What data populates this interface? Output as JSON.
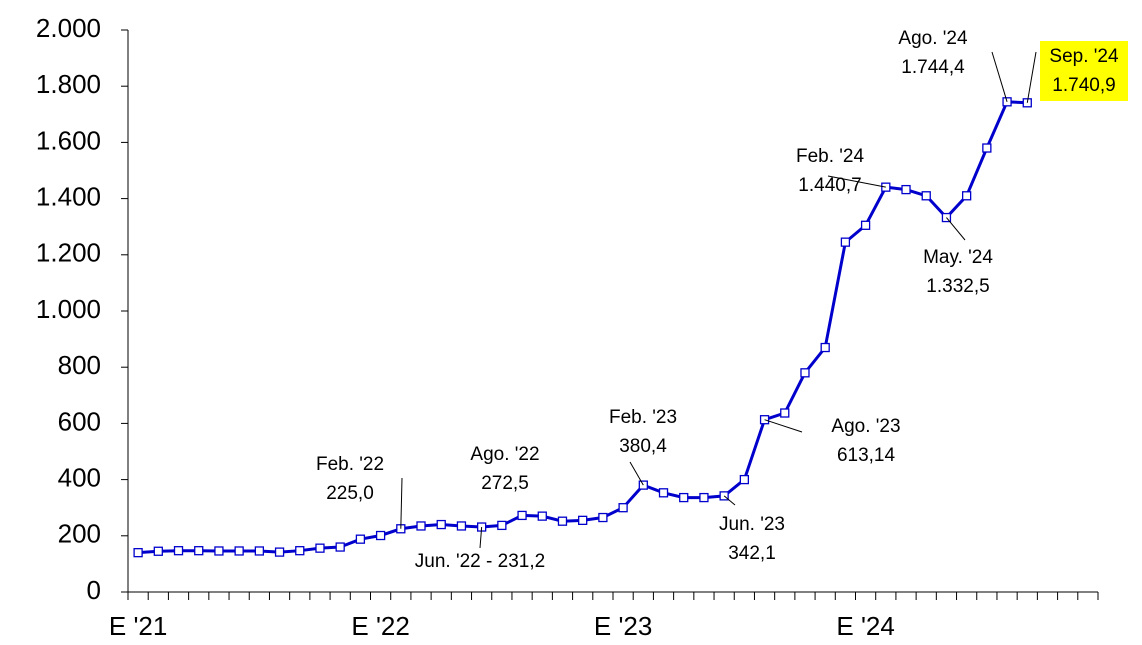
{
  "chart_data": {
    "type": "line",
    "categories": [
      "E '21",
      null,
      null,
      null,
      null,
      null,
      null,
      null,
      null,
      null,
      null,
      null,
      "E '22",
      null,
      null,
      null,
      null,
      null,
      null,
      null,
      null,
      null,
      null,
      null,
      "E '23",
      null,
      null,
      null,
      null,
      null,
      null,
      null,
      null,
      null,
      null,
      null,
      "E '24",
      null,
      null,
      null,
      null,
      null,
      null,
      null,
      null,
      null,
      null,
      null
    ],
    "series": [
      {
        "color": "#0000cc",
        "values": [
          140,
          145,
          147,
          147,
          146,
          146,
          146,
          142,
          147,
          156,
          160,
          188,
          201,
          225.0,
          235,
          240,
          235,
          231.2,
          237,
          272.5,
          270,
          252,
          255,
          265,
          300,
          380.4,
          353,
          336,
          336,
          342.1,
          400,
          613.14,
          637,
          780,
          870,
          1245,
          1305,
          1440.7,
          1432,
          1410,
          1332.5,
          1410,
          1580,
          1744.4,
          1740.9,
          null,
          null,
          null
        ]
      }
    ],
    "annotations": [
      {
        "lines": [
          "Feb. '22",
          "225,0"
        ]
      },
      {
        "lines": [
          "Jun. '22 - 231,2"
        ]
      },
      {
        "lines": [
          "Ago. '22",
          "272,5"
        ]
      },
      {
        "lines": [
          "Feb. '23",
          "380,4"
        ]
      },
      {
        "lines": [
          "Jun. '23",
          "342,1"
        ]
      },
      {
        "lines": [
          "Ago. '23",
          "613,14"
        ]
      },
      {
        "lines": [
          "Feb. '24",
          "1.440,7"
        ]
      },
      {
        "lines": [
          "May. '24",
          "1.332,5"
        ]
      },
      {
        "lines": [
          "Ago. '24",
          "1.744,4"
        ]
      },
      {
        "lines": [
          "Sep. '24",
          "1.740,9"
        ],
        "highlight": "#ffff00"
      }
    ],
    "ylim": [
      0,
      2000
    ],
    "yticks": [
      0,
      200,
      400,
      600,
      800,
      {
        "value": 1000,
        "label": "1.000"
      },
      {
        "value": 1200,
        "label": "1.200"
      },
      {
        "value": 1400,
        "label": "1.400"
      },
      {
        "value": 1600,
        "label": "1.600"
      },
      {
        "value": 1800,
        "label": "1.800"
      },
      {
        "value": 2000,
        "label": "2.000"
      }
    ]
  }
}
